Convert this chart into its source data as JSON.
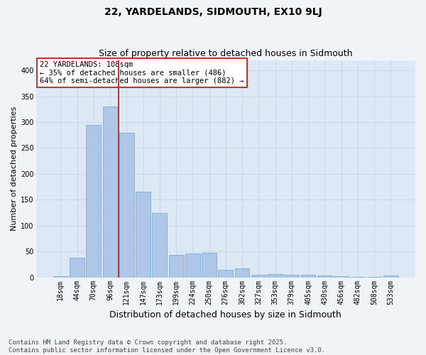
{
  "title": "22, YARDELANDS, SIDMOUTH, EX10 9LJ",
  "subtitle": "Size of property relative to detached houses in Sidmouth",
  "xlabel": "Distribution of detached houses by size in Sidmouth",
  "ylabel": "Number of detached properties",
  "categories": [
    "18sqm",
    "44sqm",
    "70sqm",
    "96sqm",
    "121sqm",
    "147sqm",
    "173sqm",
    "199sqm",
    "224sqm",
    "250sqm",
    "276sqm",
    "302sqm",
    "327sqm",
    "353sqm",
    "379sqm",
    "405sqm",
    "430sqm",
    "456sqm",
    "482sqm",
    "508sqm",
    "533sqm"
  ],
  "values": [
    2,
    38,
    295,
    330,
    280,
    165,
    125,
    43,
    46,
    47,
    15,
    17,
    5,
    7,
    5,
    5,
    3,
    2,
    1,
    1,
    3
  ],
  "bar_color": "#aec6e8",
  "bar_edge_color": "#7aafd4",
  "vline_x": 3.5,
  "vline_color": "#c0392b",
  "annotation_text": "22 YARDELANDS: 108sqm\n← 35% of detached houses are smaller (486)\n64% of semi-detached houses are larger (882) →",
  "annotation_box_color": "#ffffff",
  "annotation_box_edge": "#c0392b",
  "ylim": [
    0,
    420
  ],
  "yticks": [
    0,
    50,
    100,
    150,
    200,
    250,
    300,
    350,
    400
  ],
  "grid_color": "#c8d8e8",
  "bg_color": "#dce9f5",
  "fig_bg_color": "#f0f4f8",
  "footnote": "Contains HM Land Registry data © Crown copyright and database right 2025.\nContains public sector information licensed under the Open Government Licence v3.0.",
  "title_fontsize": 10,
  "subtitle_fontsize": 9,
  "xlabel_fontsize": 9,
  "ylabel_fontsize": 8,
  "tick_fontsize": 7,
  "annotation_fontsize": 7.5,
  "footnote_fontsize": 6.5
}
